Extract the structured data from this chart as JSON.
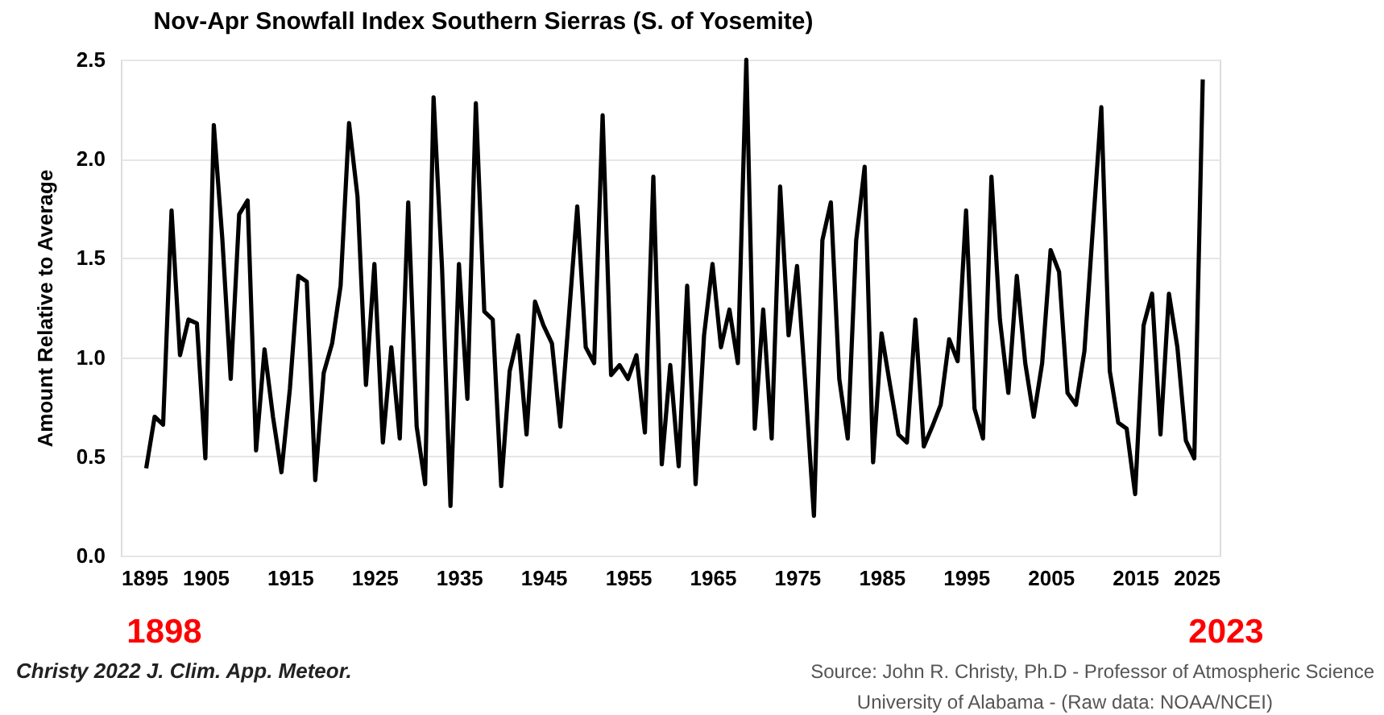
{
  "chart_data": {
    "type": "line",
    "title": "Nov-Apr Snowfall Index Southern Sierras (S. of Yosemite)",
    "ylabel": "Amount Relative to Average",
    "x": [
      1898,
      1899,
      1900,
      1901,
      1902,
      1903,
      1904,
      1905,
      1906,
      1907,
      1908,
      1909,
      1910,
      1911,
      1912,
      1913,
      1914,
      1915,
      1916,
      1917,
      1918,
      1919,
      1920,
      1921,
      1922,
      1923,
      1924,
      1925,
      1926,
      1927,
      1928,
      1929,
      1930,
      1931,
      1932,
      1933,
      1934,
      1935,
      1936,
      1937,
      1938,
      1939,
      1940,
      1941,
      1942,
      1943,
      1944,
      1945,
      1946,
      1947,
      1948,
      1949,
      1950,
      1951,
      1952,
      1953,
      1954,
      1955,
      1956,
      1957,
      1958,
      1959,
      1960,
      1961,
      1962,
      1963,
      1964,
      1965,
      1966,
      1967,
      1968,
      1969,
      1970,
      1971,
      1972,
      1973,
      1974,
      1975,
      1976,
      1977,
      1978,
      1979,
      1980,
      1981,
      1982,
      1983,
      1984,
      1985,
      1986,
      1987,
      1988,
      1989,
      1990,
      1991,
      1992,
      1993,
      1994,
      1995,
      1996,
      1997,
      1998,
      1999,
      2000,
      2001,
      2002,
      2003,
      2004,
      2005,
      2006,
      2007,
      2008,
      2009,
      2010,
      2011,
      2012,
      2013,
      2014,
      2015,
      2016,
      2017,
      2018,
      2019,
      2020,
      2021,
      2022,
      2023
    ],
    "series": [
      {
        "color": "#000000",
        "values": [
          0.44,
          0.7,
          0.66,
          1.74,
          1.01,
          1.19,
          1.17,
          0.49,
          2.17,
          1.6,
          0.89,
          1.72,
          1.79,
          0.53,
          1.04,
          0.7,
          0.42,
          0.84,
          1.41,
          1.38,
          0.38,
          0.92,
          1.07,
          1.36,
          2.18,
          1.81,
          0.86,
          1.47,
          0.57,
          1.05,
          0.59,
          1.78,
          0.65,
          0.36,
          2.31,
          1.45,
          0.25,
          1.47,
          0.79,
          2.28,
          1.23,
          1.19,
          0.35,
          0.93,
          1.11,
          0.61,
          1.28,
          1.16,
          1.07,
          0.65,
          1.2,
          1.76,
          1.05,
          0.97,
          2.22,
          0.91,
          0.96,
          0.89,
          1.01,
          0.62,
          1.91,
          0.46,
          0.96,
          0.45,
          1.36,
          0.36,
          1.11,
          1.47,
          1.05,
          1.24,
          0.97,
          2.5,
          0.64,
          1.24,
          0.59,
          1.86,
          1.11,
          1.46,
          0.85,
          0.2,
          1.59,
          1.78,
          0.89,
          0.59,
          1.59,
          1.96,
          0.47,
          1.12,
          0.86,
          0.61,
          0.57,
          1.19,
          0.55,
          0.65,
          0.76,
          1.09,
          0.98,
          1.74,
          0.74,
          0.59,
          1.91,
          1.19,
          0.82,
          1.41,
          0.97,
          0.7,
          0.97,
          1.54,
          1.43,
          0.82,
          0.76,
          1.03,
          1.65,
          2.26,
          0.93,
          0.67,
          0.64,
          0.31,
          1.16,
          1.32,
          0.61,
          1.32,
          1.05,
          0.58,
          0.49,
          2.4
        ]
      }
    ],
    "xlim": [
      1895,
      2025
    ],
    "xticks": [
      1895,
      1905,
      1915,
      1925,
      1935,
      1945,
      1955,
      1965,
      1975,
      1985,
      1995,
      2005,
      2015,
      2025
    ],
    "ylim": [
      0,
      2.5
    ],
    "yticks": [
      {
        "value": 0,
        "label": "0.0"
      },
      0.5,
      {
        "value": 1,
        "label": "1.0"
      },
      1.5,
      {
        "value": 2,
        "label": "2.0"
      },
      2.5
    ],
    "grid": "y",
    "marker": "none",
    "line_style": "solid",
    "annotations": [
      "1898",
      "2023",
      "Christy 2022 J. Clim. App. Meteor.",
      "Source: John R. Christy, Ph.D - Professor of Atmospheric Science",
      "University of Alabama - (Raw data: NOAA/NCEI)"
    ]
  }
}
